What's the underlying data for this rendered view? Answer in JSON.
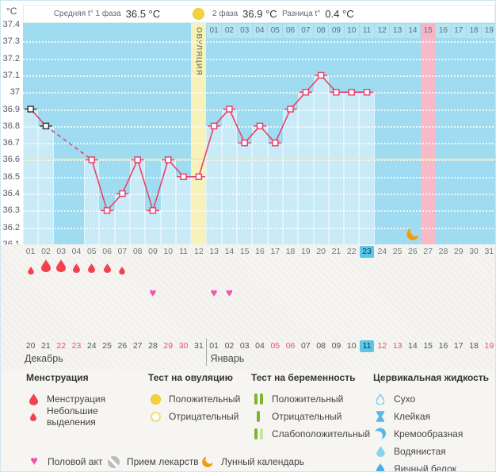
{
  "units_label": "°C",
  "header": {
    "phase1_label": "Средняя t° 1 фаза",
    "phase1_value": "36.5 °C",
    "phase2_label": "2 фаза",
    "phase2_value": "36.9 °C",
    "diff_label": "Разница t°",
    "diff_value": "0.4 °C"
  },
  "colors": {
    "chart_bg": "#9fdcf1",
    "bar_fill": "#c8ebf7",
    "day_cell": "#b5e4f3",
    "ovulation_band": "#f6f2ba",
    "pink_band": "#f8b9c9",
    "coverline": "#efec9b",
    "temp_line": "#e8426b",
    "excluded_marker": "#3a3a3a",
    "highlight_blue": "#5bc6e9",
    "weekend_red": "#ee4d6f",
    "menstruation_red": "#f4414e",
    "heart_pink": "#f155ae",
    "ovulation_yellow": "#f7d03c",
    "pregnancy_green": "#7cb62e",
    "cervical_blue": "#57b7e8",
    "moon_orange": "#f29c16"
  },
  "chart_data": {
    "type": "line",
    "title": "График базальной температуры",
    "ylabel": "°C",
    "ylim": [
      36.1,
      37.4
    ],
    "grid": true,
    "y_ticks": [
      "37.4",
      "37.3",
      "37.2",
      "37.1",
      "37",
      "36.9",
      "36.8",
      "36.7",
      "36.6",
      "36.5",
      "36.4",
      "36.3",
      "36.2",
      "36.1"
    ],
    "x_days": 31,
    "temperatures": [
      {
        "day": 1,
        "temp": 36.9,
        "excluded": true
      },
      {
        "day": 2,
        "temp": 36.8,
        "excluded": true
      },
      {
        "day": 5,
        "temp": 36.6
      },
      {
        "day": 6,
        "temp": 36.3
      },
      {
        "day": 7,
        "temp": 36.4
      },
      {
        "day": 8,
        "temp": 36.6
      },
      {
        "day": 9,
        "temp": 36.3
      },
      {
        "day": 10,
        "temp": 36.6
      },
      {
        "day": 11,
        "temp": 36.5
      },
      {
        "day": 12,
        "temp": 36.5
      },
      {
        "day": 13,
        "temp": 36.8
      },
      {
        "day": 14,
        "temp": 36.9
      },
      {
        "day": 15,
        "temp": 36.7
      },
      {
        "day": 16,
        "temp": 36.8
      },
      {
        "day": 17,
        "temp": 36.7
      },
      {
        "day": 18,
        "temp": 36.9
      },
      {
        "day": 19,
        "temp": 37.0
      },
      {
        "day": 20,
        "temp": 37.1
      },
      {
        "day": 21,
        "temp": 37.0
      },
      {
        "day": 22,
        "temp": 37.0
      },
      {
        "day": 23,
        "temp": 37.0
      }
    ],
    "coverline_temp": 36.6,
    "ovulation_day": 12,
    "ovulation_label": "ОВУЛЯЦИЯ",
    "pregnancy_test_band_day": 27,
    "lunar_calendar_day": 26,
    "current_cycle_day": 23,
    "post_ovulation_day_labels": [
      "01",
      "02",
      "03",
      "04",
      "05",
      "06",
      "07",
      "08",
      "09",
      "10",
      "11",
      "12",
      "13",
      "14",
      "15",
      "16",
      "17",
      "18",
      "19"
    ],
    "post_ovulation_highlighted_label": "15",
    "cycle_day_labels": [
      "01",
      "02",
      "03",
      "04",
      "05",
      "06",
      "07",
      "08",
      "09",
      "10",
      "11",
      "12",
      "13",
      "14",
      "15",
      "16",
      "17",
      "18",
      "19",
      "20",
      "21",
      "22",
      "23",
      "24",
      "25",
      "26",
      "27",
      "28",
      "29",
      "30",
      "31"
    ],
    "menstruation_days": [
      {
        "day": 1,
        "size": "small"
      },
      {
        "day": 2,
        "size": "large"
      },
      {
        "day": 3,
        "size": "large"
      },
      {
        "day": 4,
        "size": "medium"
      },
      {
        "day": 5,
        "size": "medium"
      },
      {
        "day": 6,
        "size": "medium"
      },
      {
        "day": 7,
        "size": "small"
      }
    ],
    "intercourse_days": [
      9,
      13,
      14
    ]
  },
  "calendar": {
    "divider_after_day": 12,
    "months": [
      {
        "name": "Декабрь",
        "dates": [
          {
            "label": "20"
          },
          {
            "label": "21"
          },
          {
            "label": "22",
            "weekend": true
          },
          {
            "label": "23",
            "weekend": true
          },
          {
            "label": "24"
          },
          {
            "label": "25"
          },
          {
            "label": "26"
          },
          {
            "label": "27"
          },
          {
            "label": "28"
          },
          {
            "label": "29",
            "weekend": true
          },
          {
            "label": "30",
            "weekend": true
          },
          {
            "label": "31"
          }
        ]
      },
      {
        "name": "Январь",
        "dates": [
          {
            "label": "01"
          },
          {
            "label": "02"
          },
          {
            "label": "03"
          },
          {
            "label": "04"
          },
          {
            "label": "05",
            "weekend": true
          },
          {
            "label": "06",
            "weekend": true
          },
          {
            "label": "07"
          },
          {
            "label": "08"
          },
          {
            "label": "09"
          },
          {
            "label": "10"
          },
          {
            "label": "11",
            "current": true
          },
          {
            "label": "12",
            "weekend": true
          },
          {
            "label": "13",
            "weekend": true
          },
          {
            "label": "14"
          },
          {
            "label": "15"
          },
          {
            "label": "16"
          },
          {
            "label": "17"
          },
          {
            "label": "18"
          },
          {
            "label": "19",
            "weekend": true
          }
        ]
      }
    ]
  },
  "legend": {
    "sections": [
      {
        "title": "Менструация",
        "items": [
          {
            "icon": "drop-large",
            "label": "Менструация"
          },
          {
            "icon": "drop-small",
            "label": "Небольшие выделения"
          }
        ]
      },
      {
        "title": "Тест на овуляцию",
        "items": [
          {
            "icon": "circle-filled",
            "label": "Положительный"
          },
          {
            "icon": "circle-outline",
            "label": "Отрицательный"
          }
        ]
      },
      {
        "title": "Тест на беременность",
        "items": [
          {
            "icon": "bars-positive",
            "label": "Положительный"
          },
          {
            "icon": "bar-negative",
            "label": "Отрицательный"
          },
          {
            "icon": "bars-weak",
            "label": "Слабоположительный"
          }
        ]
      },
      {
        "title": "Цервикальная жидкость",
        "items": [
          {
            "icon": "drop-dry",
            "label": "Сухо"
          },
          {
            "icon": "sticky",
            "label": "Клейкая"
          },
          {
            "icon": "creamy",
            "label": "Кремообразная"
          },
          {
            "icon": "watery",
            "label": "Водянистая"
          },
          {
            "icon": "eggwhite",
            "label": "Яичный белок"
          }
        ]
      }
    ],
    "extra_items": [
      {
        "icon": "heart",
        "label": "Половой акт"
      },
      {
        "icon": "pill",
        "label": "Прием лекарств"
      },
      {
        "icon": "moon",
        "label": "Лунный календарь"
      }
    ]
  }
}
